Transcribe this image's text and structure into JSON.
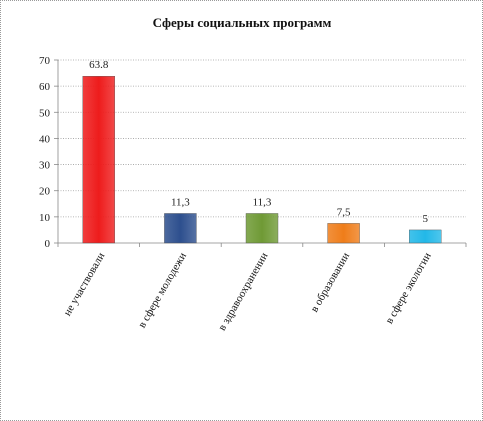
{
  "chart_data": {
    "type": "bar",
    "title": "Сферы социальных программ",
    "categories": [
      "не участвовали",
      "в сфере молодежи",
      "в здравоохранении",
      "в образовании",
      "в сфере экологии"
    ],
    "values": [
      63.8,
      11.3,
      11.3,
      7.5,
      5
    ],
    "value_labels": [
      "63.8",
      "11,3",
      "11,3",
      "7,5",
      "5"
    ],
    "bar_colors": [
      "#ee1c1c",
      "#2d4f8e",
      "#6f9a35",
      "#ef7d1a",
      "#22b8e8"
    ],
    "ylim": [
      0,
      70
    ],
    "yticks": [
      0,
      10,
      20,
      30,
      40,
      50,
      60,
      70
    ],
    "grid": true,
    "legend": "none"
  }
}
